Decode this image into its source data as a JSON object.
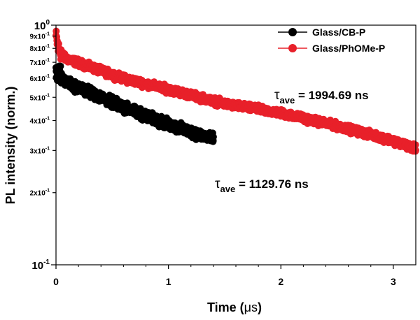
{
  "chart_data": {
    "type": "scatter",
    "xlabel_main": "Time (",
    "xlabel_unit": "μs",
    "xlabel_close": ")",
    "ylabel": "PL intensity (norm.)",
    "x_range": [
      0,
      3.2
    ],
    "y_range": [
      0.1,
      1.0
    ],
    "y_scale": "log",
    "x_ticks": [
      {
        "value": 0,
        "label": "0"
      },
      {
        "value": 1,
        "label": "1"
      },
      {
        "value": 2,
        "label": "2"
      },
      {
        "value": 3,
        "label": "3"
      }
    ],
    "y_ticks": [
      {
        "value": 1.0,
        "base": "10",
        "exp": "0"
      },
      {
        "value": 0.9,
        "base": "9x10",
        "exp": "-1"
      },
      {
        "value": 0.8,
        "base": "8x10",
        "exp": "-1"
      },
      {
        "value": 0.7,
        "base": "7x10",
        "exp": "-1"
      },
      {
        "value": 0.6,
        "base": "6x10",
        "exp": "-1"
      },
      {
        "value": 0.5,
        "base": "5x10",
        "exp": "-1"
      },
      {
        "value": 0.4,
        "base": "4x10",
        "exp": "-1"
      },
      {
        "value": 0.3,
        "base": "3x10",
        "exp": "-1"
      },
      {
        "value": 0.2,
        "base": "2x10",
        "exp": "-1"
      },
      {
        "value": 0.1,
        "base": "10",
        "exp": "-1"
      }
    ],
    "legend_position": "top-right",
    "series": [
      {
        "name": "Glass/CB-P",
        "color": "#000000",
        "x_range": [
          0,
          1.4
        ],
        "trend": [
          [
            0,
            0.66
          ],
          [
            0.02,
            0.62
          ],
          [
            0.1,
            0.575
          ],
          [
            0.3,
            0.525
          ],
          [
            0.6,
            0.455
          ],
          [
            1.0,
            0.385
          ],
          [
            1.4,
            0.335
          ]
        ],
        "spread": 0.07
      },
      {
        "name": "Glass/PhOMe-P",
        "color": "#e8202a",
        "x_range": [
          0,
          3.2
        ],
        "trend": [
          [
            0,
            0.9
          ],
          [
            0.02,
            0.8
          ],
          [
            0.08,
            0.73
          ],
          [
            0.3,
            0.67
          ],
          [
            0.6,
            0.6
          ],
          [
            1.0,
            0.54
          ],
          [
            1.5,
            0.47
          ],
          [
            2.0,
            0.43
          ],
          [
            2.5,
            0.38
          ],
          [
            3.0,
            0.33
          ],
          [
            3.2,
            0.305
          ]
        ],
        "spread": 0.05
      }
    ],
    "annotations": [
      {
        "symbol": "τ",
        "sub": "ave",
        "text": " = 1994.69 ns",
        "at": [
          2.0,
          0.54
        ]
      },
      {
        "symbol": "τ",
        "sub": "ave",
        "text": " = 1129.76 ns",
        "at": [
          1.42,
          0.222
        ]
      }
    ]
  }
}
